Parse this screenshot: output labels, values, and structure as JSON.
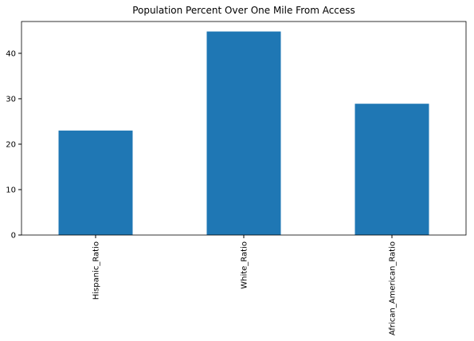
{
  "chart_data": {
    "type": "bar",
    "title": "Population Percent Over One Mile From Access",
    "xlabel": "",
    "ylabel": "",
    "categories": [
      "Hispanic_Ratio",
      "White_Ratio",
      "African_American_Ratio"
    ],
    "values": [
      23,
      44.8,
      28.9
    ],
    "ylim": [
      0,
      47
    ],
    "yticks": [
      0,
      10,
      20,
      30,
      40
    ],
    "grid": false,
    "legend": "none",
    "bar_color": "#1f77b4"
  }
}
